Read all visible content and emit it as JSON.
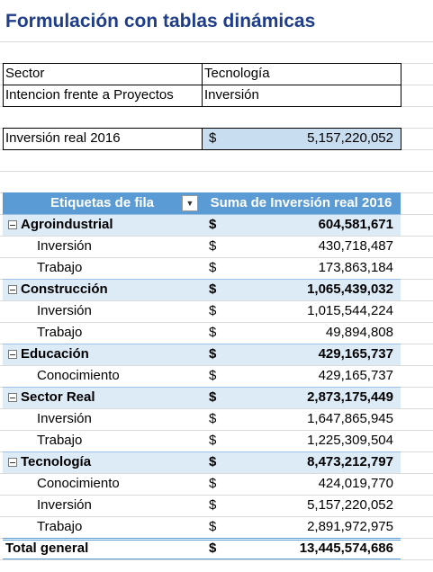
{
  "title": "Formulación con tablas dinámicas",
  "criteria": [
    [
      "Sector",
      "Tecnología"
    ],
    [
      "Intencion frente a Proyectos",
      "Inversión"
    ]
  ],
  "result": {
    "label": "Inversión real 2016",
    "currency": "$",
    "value": "5,157,220,052"
  },
  "pivot": {
    "headers": [
      "Etiquetas de fila",
      "Suma de Inversión real 2016"
    ],
    "currency": "$",
    "groups": [
      {
        "name": "Agroindustrial",
        "total": "604,581,671",
        "items": [
          [
            "Inversión",
            "430,718,487"
          ],
          [
            "Trabajo",
            "173,863,184"
          ]
        ]
      },
      {
        "name": "Construcción",
        "total": "1,065,439,032",
        "items": [
          [
            "Inversión",
            "1,015,544,224"
          ],
          [
            "Trabajo",
            "49,894,808"
          ]
        ]
      },
      {
        "name": "Educación",
        "total": "429,165,737",
        "items": [
          [
            "Conocimiento",
            "429,165,737"
          ]
        ]
      },
      {
        "name": "Sector Real",
        "total": "2,873,175,449",
        "items": [
          [
            "Inversión",
            "1,647,865,945"
          ],
          [
            "Trabajo",
            "1,225,309,504"
          ]
        ]
      },
      {
        "name": "Tecnología",
        "total": "8,473,212,797",
        "items": [
          [
            "Conocimiento",
            "424,019,770"
          ],
          [
            "Inversión",
            "5,157,220,052"
          ],
          [
            "Trabajo",
            "2,891,972,975"
          ]
        ]
      }
    ],
    "grand_total": {
      "label": "Total general",
      "value": "13,445,574,686"
    }
  }
}
